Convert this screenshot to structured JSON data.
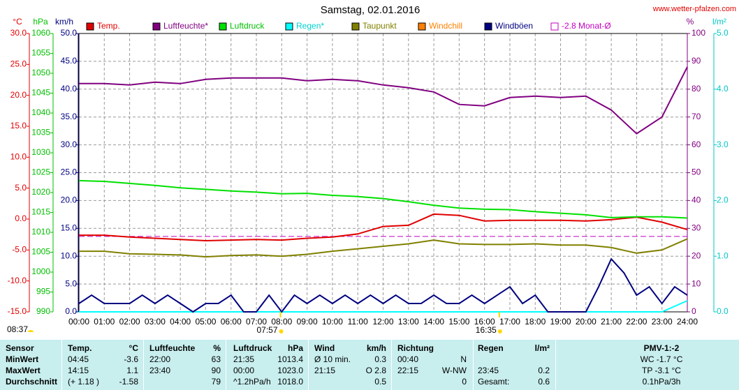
{
  "chart_data": {
    "type": "line",
    "title": "Samstag, 02.01.2016",
    "source": "www.wetter-pfalzen.com",
    "grid": true,
    "xlim": [
      0,
      24
    ],
    "xticks": [
      {
        "value": 0,
        "label": "00:00"
      },
      {
        "value": 1,
        "label": "01:00"
      },
      {
        "value": 2,
        "label": "02:00"
      },
      {
        "value": 3,
        "label": "03:00"
      },
      {
        "value": 4,
        "label": "04:00"
      },
      {
        "value": 5,
        "label": "05:00"
      },
      {
        "value": 6,
        "label": "06:00"
      },
      {
        "value": 7,
        "label": "07:00"
      },
      {
        "value": 8,
        "label": "08:00"
      },
      {
        "value": 9,
        "label": "09:00"
      },
      {
        "value": 10,
        "label": "10:00"
      },
      {
        "value": 11,
        "label": "11:00"
      },
      {
        "value": 12,
        "label": "12:00"
      },
      {
        "value": 13,
        "label": "13:00"
      },
      {
        "value": 14,
        "label": "14:00"
      },
      {
        "value": 15,
        "label": "15:00"
      },
      {
        "value": 16,
        "label": "16:00"
      },
      {
        "value": 17,
        "label": "17:00"
      },
      {
        "value": 18,
        "label": "18:00"
      },
      {
        "value": 19,
        "label": "19:00"
      },
      {
        "value": 20,
        "label": "20:00"
      },
      {
        "value": 21,
        "label": "21:00"
      },
      {
        "value": 22,
        "label": "22:00"
      },
      {
        "value": 23,
        "label": "23:00"
      },
      {
        "value": 24,
        "label": "24:00"
      }
    ],
    "x": [
      0,
      1,
      2,
      3,
      4,
      5,
      6,
      7,
      8,
      9,
      10,
      11,
      12,
      13,
      14,
      15,
      16,
      17,
      18,
      19,
      20,
      21,
      22,
      23,
      24
    ],
    "axes": {
      "temp": {
        "label": "°C",
        "color": "#e00000",
        "lim": [
          -15,
          30
        ],
        "ticks": [
          {
            "value": 30,
            "label": "30.0"
          },
          {
            "value": 25,
            "label": "25.0"
          },
          {
            "value": 20,
            "label": "20.0"
          },
          {
            "value": 15,
            "label": "15.0"
          },
          {
            "value": 10,
            "label": "10.0"
          },
          {
            "value": 5,
            "label": "5.0"
          },
          {
            "value": 0,
            "label": "0.0"
          },
          {
            "value": -5,
            "label": "-5.0"
          },
          {
            "value": -10,
            "label": "-10.0"
          },
          {
            "value": -15,
            "label": "-15.0"
          }
        ]
      },
      "hpa": {
        "label": "hPa",
        "color": "#00c000",
        "lim": [
          990,
          1060
        ],
        "ticks": [
          1060,
          1055,
          1050,
          1045,
          1040,
          1035,
          1030,
          1025,
          1020,
          1015,
          1010,
          1005,
          1000,
          995,
          990
        ]
      },
      "kmh": {
        "label": "km/h",
        "color": "#000080",
        "lim": [
          0,
          50
        ],
        "ticks": [
          {
            "value": 50,
            "label": "50.0"
          },
          {
            "value": 45,
            "label": "45.0"
          },
          {
            "value": 40,
            "label": "40.0"
          },
          {
            "value": 35,
            "label": "35.0"
          },
          {
            "value": 30,
            "label": "30.0"
          },
          {
            "value": 25,
            "label": "25.0"
          },
          {
            "value": 20,
            "label": "20.0"
          },
          {
            "value": 15,
            "label": "15.0"
          },
          {
            "value": 10,
            "label": "10.0"
          },
          {
            "value": 5,
            "label": "5.0"
          },
          {
            "value": 0,
            "label": "0.0"
          }
        ]
      },
      "pct": {
        "label": "%",
        "color": "#800080",
        "lim": [
          0,
          100
        ],
        "ticks": [
          100,
          90,
          80,
          70,
          60,
          50,
          40,
          30,
          20,
          10,
          0
        ]
      },
      "lm2": {
        "label": "l/m²",
        "color": "#00c8c8",
        "lim": [
          0,
          5
        ],
        "ticks": [
          {
            "value": 5,
            "label": "5.0"
          },
          {
            "value": 4,
            "label": "4.0"
          },
          {
            "value": 3,
            "label": "3.0"
          },
          {
            "value": 2,
            "label": "2.0"
          },
          {
            "value": 1,
            "label": "1.0"
          },
          {
            "value": 0,
            "label": "0.0"
          }
        ]
      }
    },
    "series": [
      {
        "name": "Temp.",
        "color": "#e00000",
        "axis": "temp",
        "values": [
          -2.6,
          -2.6,
          -2.9,
          -3.1,
          -3.3,
          -3.5,
          -3.4,
          -3.3,
          -3.4,
          -3.1,
          -2.9,
          -2.4,
          -1.2,
          -1.0,
          0.8,
          0.6,
          -0.3,
          -0.2,
          -0.2,
          -0.2,
          -0.3,
          -0.1,
          0.3,
          -0.5,
          -1.7
        ]
      },
      {
        "name": "Luftfeuchte*",
        "color": "#800080",
        "axis": "pct",
        "values": [
          82,
          82,
          81.5,
          82.5,
          82,
          83.5,
          84,
          84,
          84,
          83,
          83.5,
          83,
          81.5,
          80.5,
          79,
          74.5,
          74,
          77,
          77.5,
          77,
          77.5,
          72.5,
          64,
          70,
          88
        ]
      },
      {
        "name": "Luftdruck",
        "color": "#00e000",
        "axis": "hpa",
        "values": [
          1023,
          1022.8,
          1022.3,
          1021.8,
          1021.2,
          1020.8,
          1020.4,
          1020.1,
          1019.7,
          1019.8,
          1019.3,
          1019.0,
          1018.5,
          1017.7,
          1016.8,
          1016.1,
          1015.8,
          1015.7,
          1015.2,
          1014.8,
          1014.4,
          1013.7,
          1013.9,
          1013.9,
          1013.6
        ]
      },
      {
        "name": "Regen*",
        "color": "#00ffff",
        "axis": "lm2",
        "values": [
          0,
          0,
          0,
          0,
          0,
          0,
          0,
          0,
          0,
          0,
          0,
          0,
          0,
          0,
          0,
          0,
          0,
          0,
          0,
          0,
          0,
          0,
          0,
          0,
          0.2
        ]
      },
      {
        "name": "Taupunkt",
        "color": "#808000",
        "axis": "temp",
        "values": [
          -5.2,
          -5.2,
          -5.6,
          -5.7,
          -5.8,
          -6.1,
          -5.9,
          -5.8,
          -6.0,
          -5.7,
          -5.2,
          -4.8,
          -4.4,
          -4.0,
          -3.4,
          -4.0,
          -4.1,
          -4.1,
          -4.0,
          -4.2,
          -4.2,
          -4.6,
          -5.5,
          -5.0,
          -3.2
        ]
      },
      {
        "name": "Windchill",
        "color": "#ff8000",
        "axis": "temp"
      },
      {
        "name": "Windböen",
        "color": "#000080",
        "axis": "kmh",
        "x": [
          0,
          0.5,
          1,
          1.5,
          2,
          2.5,
          3,
          3.5,
          4,
          4.5,
          5,
          5.5,
          6,
          6.5,
          7,
          7.5,
          8,
          8.5,
          9,
          9.5,
          10,
          10.5,
          11,
          11.5,
          12,
          12.5,
          13,
          13.5,
          14,
          14.5,
          15,
          15.5,
          16,
          16.5,
          17,
          17.5,
          18,
          18.5,
          19,
          19.5,
          20,
          20.5,
          21,
          21.5,
          22,
          22.5,
          23,
          23.5,
          24
        ],
        "values": [
          1.5,
          3,
          1.5,
          1.5,
          1.5,
          3,
          1.5,
          3,
          1.5,
          0,
          1.5,
          1.5,
          3,
          0,
          0,
          3,
          0,
          3,
          1.5,
          3,
          1.5,
          3,
          1.5,
          3,
          1.5,
          3,
          1.5,
          1.5,
          3,
          1.5,
          1.5,
          3,
          1.5,
          3,
          4.5,
          1.5,
          3,
          0,
          0,
          0,
          0,
          4.5,
          9.5,
          7,
          3,
          4.5,
          1.5,
          4.5,
          3
        ]
      }
    ],
    "reference": {
      "name": "-2.8 Monat-Ø",
      "color": "#c000c0",
      "axis": "temp",
      "value": -2.8
    },
    "annotations": [
      {
        "text": "08:37"
      },
      {
        "text": "07:57",
        "x": 7.95
      },
      {
        "text": "16:35",
        "x": 16.583
      }
    ]
  },
  "table": {
    "rows": [
      [
        "Sensor",
        "Temp.",
        "°C",
        "Luftfeuchte",
        "%",
        "Luftdruck",
        "hPa",
        "Wind",
        "km/h",
        "Richtung",
        null,
        "Regen",
        "l/m²",
        "PMV-1:-2"
      ],
      [
        "MinWert",
        "04:45",
        "-3.6",
        "22:00",
        "63",
        "21:35",
        "1013.4",
        "Ø 10 min.",
        "0.3",
        "00:40",
        "N",
        null,
        null,
        "WC -1.7 °C"
      ],
      [
        "MaxWert",
        "14:15",
        "1.1",
        "23:40",
        "90",
        "00:00",
        "1023.0",
        "21:15",
        "O 2.8",
        "22:15",
        "W-NW",
        "23:45",
        "0.2",
        "TP -3.1 °C"
      ],
      [
        "Durchschnitt",
        "(+ 1.18 )",
        "-1.58",
        null,
        "79",
        "^1.2hPa/h",
        "1018.0",
        null,
        "0.5",
        null,
        "0",
        "Gesamt:",
        "0.6",
        "0.1hPa/3h"
      ]
    ]
  }
}
